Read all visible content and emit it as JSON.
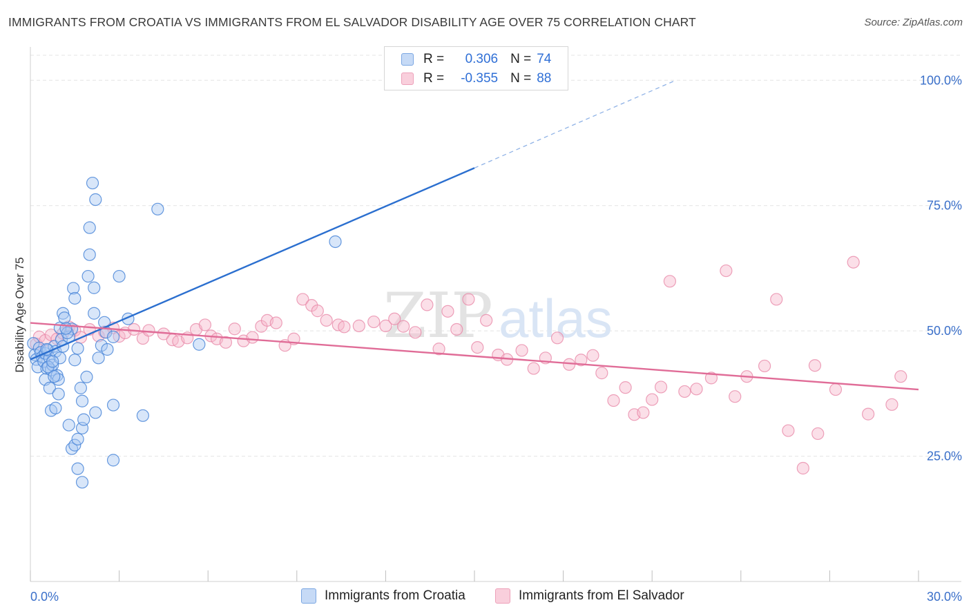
{
  "header": {
    "title": "IMMIGRANTS FROM CROATIA VS IMMIGRANTS FROM EL SALVADOR DISABILITY AGE OVER 75 CORRELATION CHART",
    "source": "Source: ZipAtlas.com"
  },
  "watermark": {
    "zip": "ZIP",
    "atlas": "atlas"
  },
  "legend": {
    "rows": [
      {
        "r_label": "R =",
        "r_value": "0.306",
        "n_label": "N =",
        "n_value": "74"
      },
      {
        "r_label": "R =",
        "r_value": "-0.355",
        "n_label": "N =",
        "n_value": "88"
      }
    ]
  },
  "colors": {
    "croatia_fill": "#a9c8f2",
    "croatia_stroke": "#4a86d8",
    "croatia_line": "#2b6fcf",
    "elsalvador_fill": "#f6b8cc",
    "elsalvador_stroke": "#e98aa9",
    "elsalvador_line": "#e06c97",
    "axis_text": "#3a6fc9",
    "grid": "#e4e4e4"
  },
  "chart_data": {
    "type": "scatter",
    "title": "IMMIGRANTS FROM CROATIA VS IMMIGRANTS FROM EL SALVADOR DISABILITY AGE OVER 75 CORRELATION CHART",
    "xlabel": "",
    "ylabel": "Disability Age Over 75",
    "xlim": [
      0,
      30
    ],
    "ylim": [
      0,
      105
    ],
    "x_ticks": [
      0,
      3,
      6,
      9,
      12,
      15,
      18,
      21,
      24,
      27,
      30
    ],
    "x_tick_labels": {
      "start": "0.0%",
      "end": "30.0%"
    },
    "y_ticks": [
      25,
      50,
      75,
      100
    ],
    "y_tick_labels": [
      "25.0%",
      "50.0%",
      "75.0%",
      "100.0%"
    ],
    "legend_position": "top-center",
    "series": [
      {
        "name": "Immigrants from Croatia",
        "R": 0.306,
        "N": 74,
        "trend": {
          "x0": 0,
          "y0": 44.3,
          "x1": 15,
          "y1": 82.5,
          "dash_to_x": 21.8,
          "dash_to_y": 100
        },
        "points": [
          [
            0.1,
            47.5
          ],
          [
            0.15,
            45.2
          ],
          [
            0.2,
            44.3
          ],
          [
            0.25,
            42.8
          ],
          [
            0.3,
            46.6
          ],
          [
            0.35,
            45.7
          ],
          [
            0.4,
            44.8
          ],
          [
            0.45,
            43.9
          ],
          [
            0.5,
            45.5
          ],
          [
            0.55,
            42.5
          ],
          [
            0.6,
            46.2
          ],
          [
            0.65,
            44.6
          ],
          [
            0.7,
            42.2
          ],
          [
            0.75,
            43.2
          ],
          [
            0.8,
            46.9
          ],
          [
            0.85,
            45.9
          ],
          [
            0.9,
            41.1
          ],
          [
            0.95,
            40.3
          ],
          [
            1.0,
            44.6
          ],
          [
            1.05,
            48.3
          ],
          [
            1.1,
            46.9
          ],
          [
            0.5,
            40.3
          ],
          [
            0.55,
            46.3
          ],
          [
            0.6,
            42.8
          ],
          [
            0.65,
            38.6
          ],
          [
            1.4,
            50.4
          ],
          [
            0.7,
            34.1
          ],
          [
            0.75,
            43.9
          ],
          [
            0.8,
            40.9
          ],
          [
            0.85,
            34.6
          ],
          [
            0.95,
            37.4
          ],
          [
            1.3,
            48.8
          ],
          [
            1.0,
            50.6
          ],
          [
            1.1,
            53.5
          ],
          [
            1.15,
            52.6
          ],
          [
            1.25,
            49.6
          ],
          [
            1.45,
            58.5
          ],
          [
            1.5,
            56.5
          ],
          [
            1.6,
            46.5
          ],
          [
            1.7,
            38.6
          ],
          [
            1.75,
            30.6
          ],
          [
            1.75,
            19.8
          ],
          [
            1.8,
            32.3
          ],
          [
            1.9,
            40.8
          ],
          [
            1.3,
            31.2
          ],
          [
            1.4,
            26.5
          ],
          [
            1.5,
            27.2
          ],
          [
            1.6,
            28.4
          ],
          [
            1.75,
            36.0
          ],
          [
            2.0,
            70.6
          ],
          [
            2.0,
            65.2
          ],
          [
            1.95,
            60.9
          ],
          [
            2.15,
            53.5
          ],
          [
            2.15,
            58.6
          ],
          [
            2.2,
            33.7
          ],
          [
            1.6,
            22.5
          ],
          [
            2.3,
            44.6
          ],
          [
            2.4,
            47.1
          ],
          [
            2.5,
            51.7
          ],
          [
            2.55,
            49.7
          ],
          [
            2.6,
            46.3
          ],
          [
            2.8,
            48.8
          ],
          [
            2.1,
            79.5
          ],
          [
            2.2,
            76.2
          ],
          [
            3.0,
            60.9
          ],
          [
            2.8,
            35.2
          ],
          [
            2.8,
            24.2
          ],
          [
            3.3,
            52.4
          ],
          [
            3.8,
            33.1
          ],
          [
            4.3,
            74.3
          ],
          [
            5.7,
            47.3
          ],
          [
            10.3,
            67.8
          ],
          [
            1.2,
            50.5
          ],
          [
            1.5,
            44.2
          ]
        ]
      },
      {
        "name": "Immigrants from El Salvador",
        "R": -0.355,
        "N": 88,
        "trend": {
          "x0": 0,
          "y0": 51.6,
          "x1": 30,
          "y1": 38.3
        },
        "points": [
          [
            0.2,
            47.4
          ],
          [
            0.3,
            48.8
          ],
          [
            0.5,
            48.1
          ],
          [
            0.7,
            49.2
          ],
          [
            0.9,
            48.4
          ],
          [
            1.1,
            49.5
          ],
          [
            1.3,
            50.8
          ],
          [
            1.5,
            50.1
          ],
          [
            1.7,
            48.7
          ],
          [
            2.0,
            50.3
          ],
          [
            2.3,
            49.0
          ],
          [
            2.5,
            49.8
          ],
          [
            2.8,
            50.6
          ],
          [
            3.0,
            48.9
          ],
          [
            3.2,
            49.6
          ],
          [
            3.5,
            50.3
          ],
          [
            3.8,
            48.5
          ],
          [
            4.0,
            50.1
          ],
          [
            4.5,
            49.4
          ],
          [
            4.8,
            48.2
          ],
          [
            5.0,
            47.9
          ],
          [
            5.3,
            48.6
          ],
          [
            5.6,
            50.3
          ],
          [
            5.9,
            51.2
          ],
          [
            6.1,
            49.0
          ],
          [
            6.3,
            48.4
          ],
          [
            6.6,
            47.7
          ],
          [
            6.9,
            50.4
          ],
          [
            7.2,
            48.0
          ],
          [
            7.5,
            48.7
          ],
          [
            7.8,
            50.9
          ],
          [
            8.0,
            52.1
          ],
          [
            8.3,
            51.6
          ],
          [
            8.6,
            47.1
          ],
          [
            8.9,
            48.4
          ],
          [
            9.2,
            56.3
          ],
          [
            9.5,
            55.1
          ],
          [
            9.7,
            54.0
          ],
          [
            10.0,
            52.1
          ],
          [
            10.4,
            51.2
          ],
          [
            10.6,
            50.8
          ],
          [
            11.1,
            51.0
          ],
          [
            11.6,
            51.8
          ],
          [
            12.0,
            51.0
          ],
          [
            12.3,
            52.4
          ],
          [
            12.6,
            50.9
          ],
          [
            13.0,
            49.7
          ],
          [
            13.4,
            55.2
          ],
          [
            13.8,
            46.4
          ],
          [
            14.1,
            53.9
          ],
          [
            14.4,
            50.3
          ],
          [
            14.8,
            56.3
          ],
          [
            15.1,
            46.7
          ],
          [
            15.4,
            52.1
          ],
          [
            15.8,
            45.2
          ],
          [
            16.1,
            44.3
          ],
          [
            16.6,
            46.1
          ],
          [
            17.0,
            42.5
          ],
          [
            17.4,
            44.6
          ],
          [
            17.8,
            48.6
          ],
          [
            18.2,
            43.3
          ],
          [
            18.6,
            44.2
          ],
          [
            19.0,
            45.1
          ],
          [
            19.3,
            41.6
          ],
          [
            19.7,
            36.1
          ],
          [
            20.1,
            38.7
          ],
          [
            20.4,
            33.3
          ],
          [
            20.7,
            33.7
          ],
          [
            21.0,
            36.3
          ],
          [
            21.3,
            38.8
          ],
          [
            21.6,
            59.9
          ],
          [
            22.1,
            37.9
          ],
          [
            22.5,
            38.4
          ],
          [
            23.0,
            40.6
          ],
          [
            23.5,
            62.0
          ],
          [
            23.8,
            36.9
          ],
          [
            24.2,
            40.9
          ],
          [
            24.8,
            43.0
          ],
          [
            25.2,
            56.3
          ],
          [
            25.6,
            30.1
          ],
          [
            26.1,
            22.6
          ],
          [
            26.6,
            29.5
          ],
          [
            27.2,
            38.3
          ],
          [
            27.8,
            63.7
          ],
          [
            28.3,
            33.4
          ],
          [
            29.1,
            35.3
          ],
          [
            29.4,
            40.9
          ],
          [
            26.5,
            43.1
          ]
        ]
      }
    ]
  },
  "bottom_legend": {
    "items": [
      {
        "label": "Immigrants from Croatia"
      },
      {
        "label": "Immigrants from El Salvador"
      }
    ]
  }
}
